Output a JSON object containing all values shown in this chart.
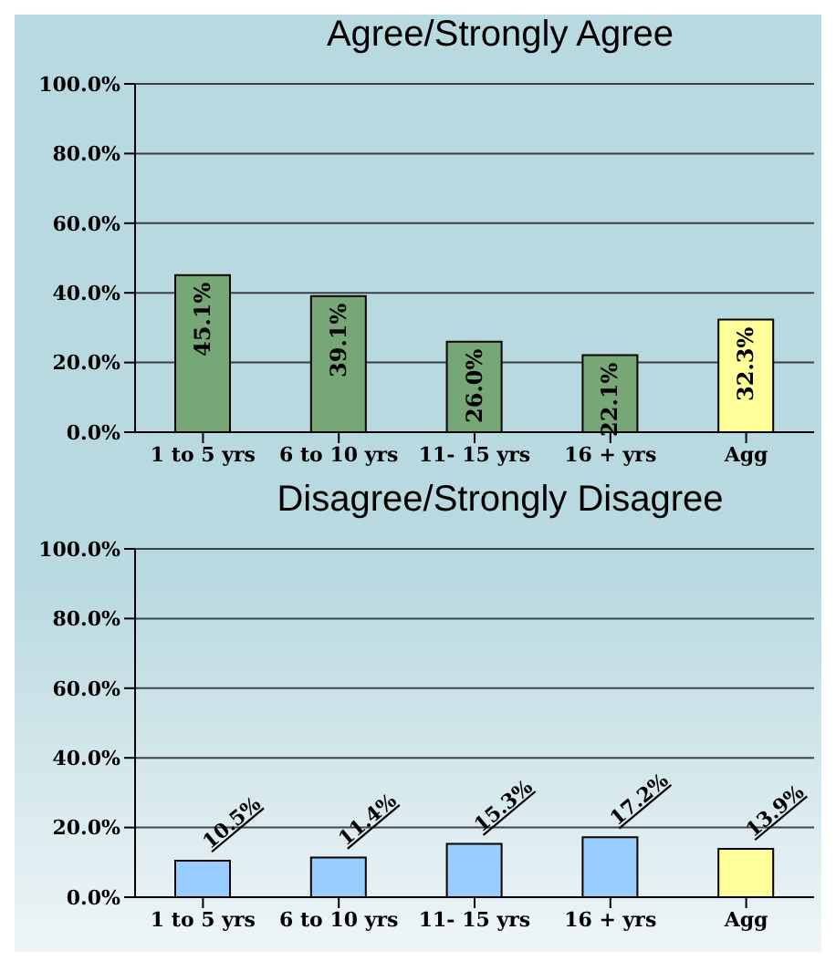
{
  "chart_data": [
    {
      "type": "bar",
      "title": "Agree/Strongly Agree",
      "categories": [
        "1 to 5 yrs",
        "6 to 10 yrs",
        "11- 15 yrs",
        "16 + yrs",
        "Agg"
      ],
      "values": [
        45.1,
        39.1,
        26.0,
        22.1,
        32.3
      ],
      "colors": [
        "#77a776",
        "#77a776",
        "#77a776",
        "#77a776",
        "#ffff99"
      ],
      "value_labels": [
        "45.1%",
        "39.1%",
        "26.0%",
        "22.1%",
        "32.3%"
      ],
      "ylim": [
        0,
        100
      ],
      "yticks": [
        {
          "value": 0,
          "label": "0.0%"
        },
        {
          "value": 20,
          "label": "20.0%"
        },
        {
          "value": 40,
          "label": "40.0%"
        },
        {
          "value": 60,
          "label": "60.0%"
        },
        {
          "value": 80,
          "label": "80.0%"
        },
        {
          "value": 100,
          "label": "100.0%"
        }
      ],
      "grid": "y"
    },
    {
      "type": "bar",
      "title": "Disagree/Strongly Disagree",
      "categories": [
        "1 to 5 yrs",
        "6 to 10 yrs",
        "11- 15 yrs",
        "16 + yrs",
        "Agg"
      ],
      "values": [
        10.5,
        11.4,
        15.3,
        17.2,
        13.9
      ],
      "colors": [
        "#99ccff",
        "#99ccff",
        "#99ccff",
        "#99ccff",
        "#ffff99"
      ],
      "value_labels": [
        "10.5%",
        "11.4%",
        "15.3%",
        "17.2%",
        "13.9%"
      ],
      "ylim": [
        0,
        100
      ],
      "yticks": [
        {
          "value": 0,
          "label": "0.0%"
        },
        {
          "value": 20,
          "label": "20.0%"
        },
        {
          "value": 40,
          "label": "40.0%"
        },
        {
          "value": 60,
          "label": "60.0%"
        },
        {
          "value": 80,
          "label": "80.0%"
        },
        {
          "value": 100,
          "label": "100.0%"
        }
      ],
      "grid": "y"
    }
  ]
}
